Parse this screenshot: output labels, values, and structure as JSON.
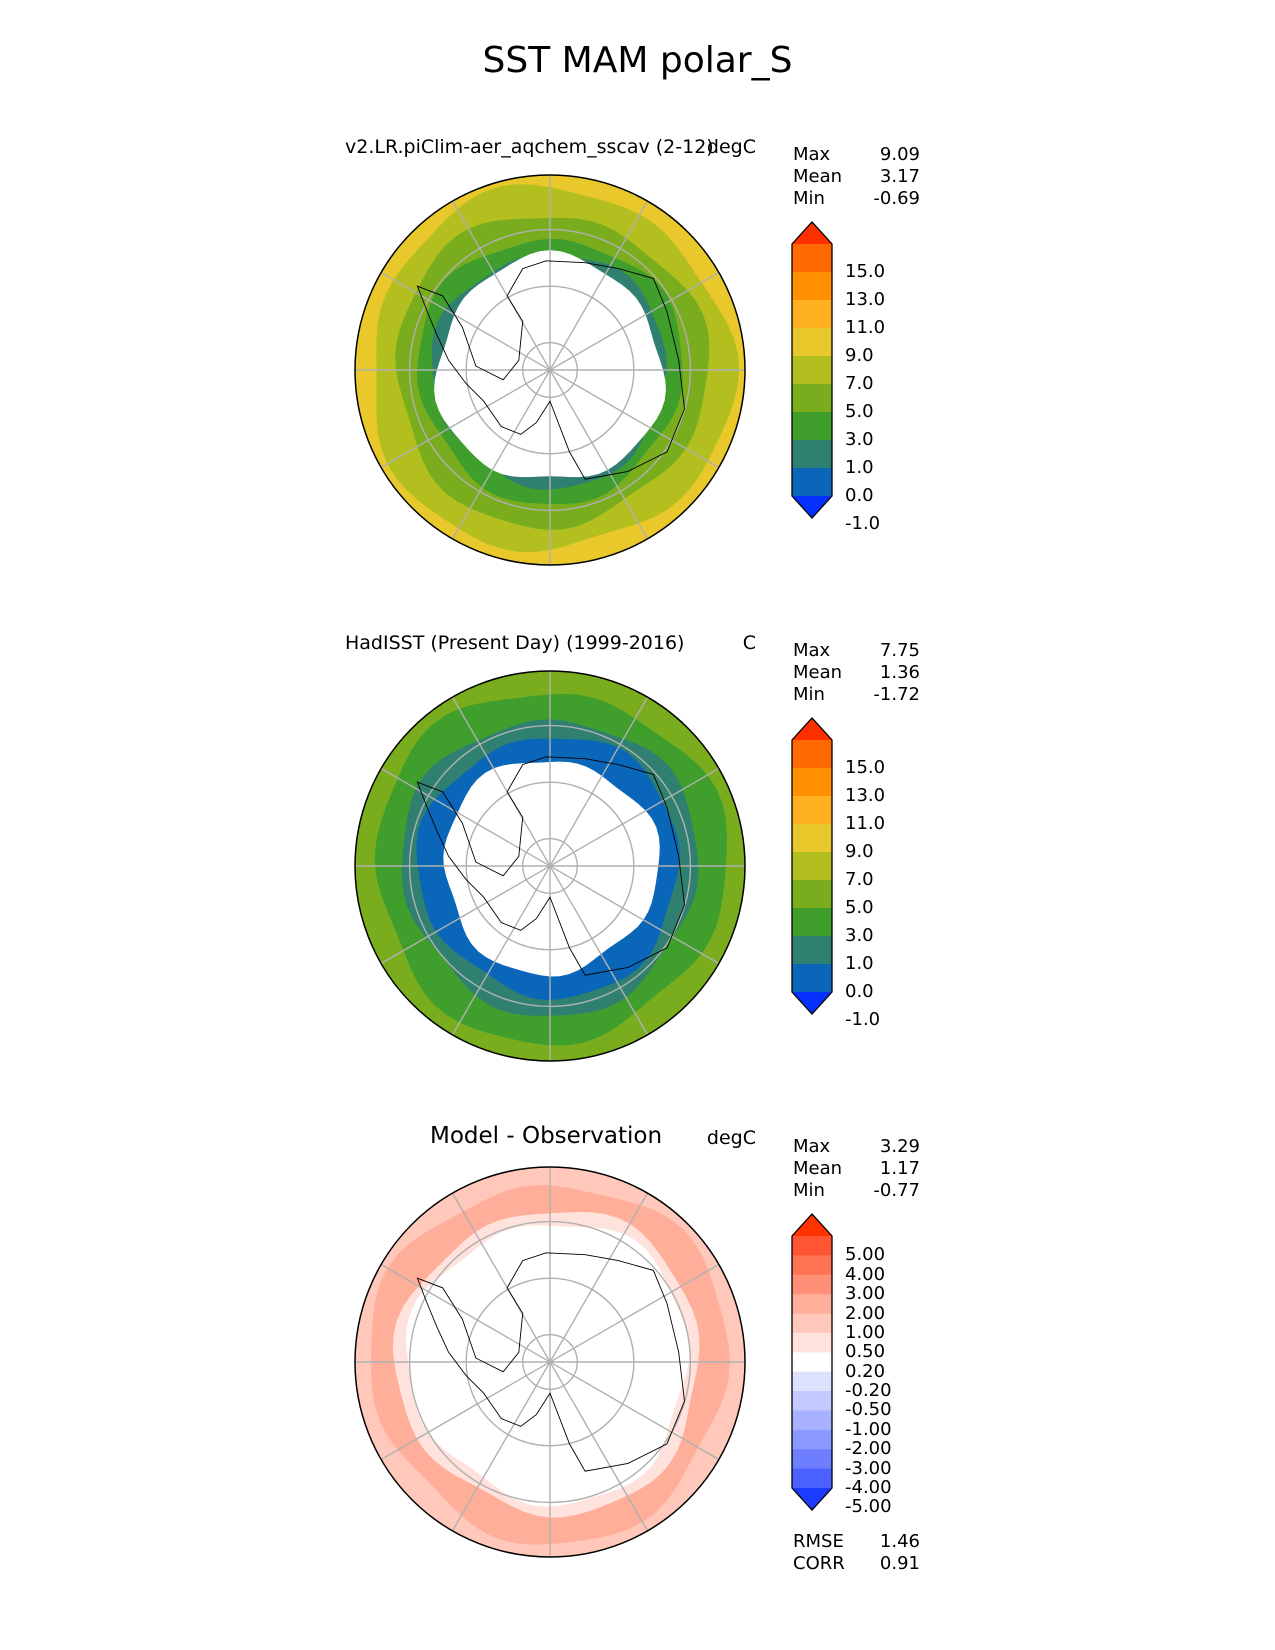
{
  "figure": {
    "title": "SST MAM polar_S"
  },
  "panels": [
    {
      "title": "v2.LR.piClim-aer_aqchem_sscav (2-12)",
      "units": "degC",
      "stats": [
        {
          "label": "Max",
          "value": "9.09"
        },
        {
          "label": "Mean",
          "value": "3.17"
        },
        {
          "label": "Min",
          "value": "-0.69"
        }
      ],
      "colorbar": {
        "ticks": [
          "15.0",
          "13.0",
          "11.0",
          "9.0",
          "7.0",
          "5.0",
          "3.0",
          "1.0",
          "0.0",
          "-1.0"
        ],
        "colors": [
          "#ff3000",
          "#ff6a00",
          "#ff9000",
          "#ffb020",
          "#e8c82a",
          "#b3bf1f",
          "#7aad1e",
          "#3f9e2c",
          "#2f8070",
          "#0a66b8",
          "#0530ff"
        ]
      },
      "zones": [
        {
          "r": 1.0,
          "color": "#e8c82a"
        },
        {
          "r": 0.93,
          "color": "#b3bf1f"
        },
        {
          "r": 0.8,
          "color": "#7aad1e"
        },
        {
          "r": 0.68,
          "color": "#3f9e2c"
        },
        {
          "r": 0.6,
          "color": "#2f8070"
        }
      ],
      "ice_r": 0.58
    },
    {
      "title": "HadISST (Present Day) (1999-2016)",
      "units": "C",
      "stats": [
        {
          "label": "Max",
          "value": "7.75"
        },
        {
          "label": "Mean",
          "value": "1.36"
        },
        {
          "label": "Min",
          "value": "-1.72"
        }
      ],
      "colorbar": {
        "ticks": [
          "15.0",
          "13.0",
          "11.0",
          "9.0",
          "7.0",
          "5.0",
          "3.0",
          "1.0",
          "0.0",
          "-1.0"
        ],
        "colors": [
          "#ff3000",
          "#ff6a00",
          "#ff9000",
          "#ffb020",
          "#e8c82a",
          "#b3bf1f",
          "#7aad1e",
          "#3f9e2c",
          "#2f8070",
          "#0a66b8",
          "#0530ff"
        ]
      },
      "zones": [
        {
          "r": 1.0,
          "color": "#7aad1e"
        },
        {
          "r": 0.9,
          "color": "#3f9e2c"
        },
        {
          "r": 0.76,
          "color": "#2f8070"
        },
        {
          "r": 0.67,
          "color": "#0a66b8"
        }
      ],
      "ice_r": 0.55
    },
    {
      "title": "Model - Observation",
      "units": "degC",
      "stats": [
        {
          "label": "Max",
          "value": "3.29"
        },
        {
          "label": "Mean",
          "value": "1.17"
        },
        {
          "label": "Min",
          "value": "-0.77"
        }
      ],
      "extra_stats": [
        {
          "label": "RMSE",
          "value": "1.46"
        },
        {
          "label": "CORR",
          "value": "0.91"
        }
      ],
      "colorbar": {
        "ticks": [
          "5.00",
          "4.00",
          "3.00",
          "2.00",
          "1.00",
          "0.50",
          "0.20",
          "-0.20",
          "-0.50",
          "-1.00",
          "-2.00",
          "-3.00",
          "-4.00",
          "-5.00"
        ],
        "colors": [
          "#ff3300",
          "#ff5533",
          "#ff7355",
          "#ff9077",
          "#ffae99",
          "#ffc8bb",
          "#ffe2dc",
          "#ffffff",
          "#dfe2ff",
          "#c4caff",
          "#a7b1ff",
          "#8a98ff",
          "#6d7fff",
          "#4a60ff",
          "#1c3cff"
        ]
      },
      "zones": [
        {
          "r": 1.0,
          "color": "#ffc8bb"
        },
        {
          "r": 0.92,
          "color": "#ffae99"
        },
        {
          "r": 0.78,
          "color": "#ffe2dc"
        }
      ],
      "ice_r": 0.72
    }
  ]
}
